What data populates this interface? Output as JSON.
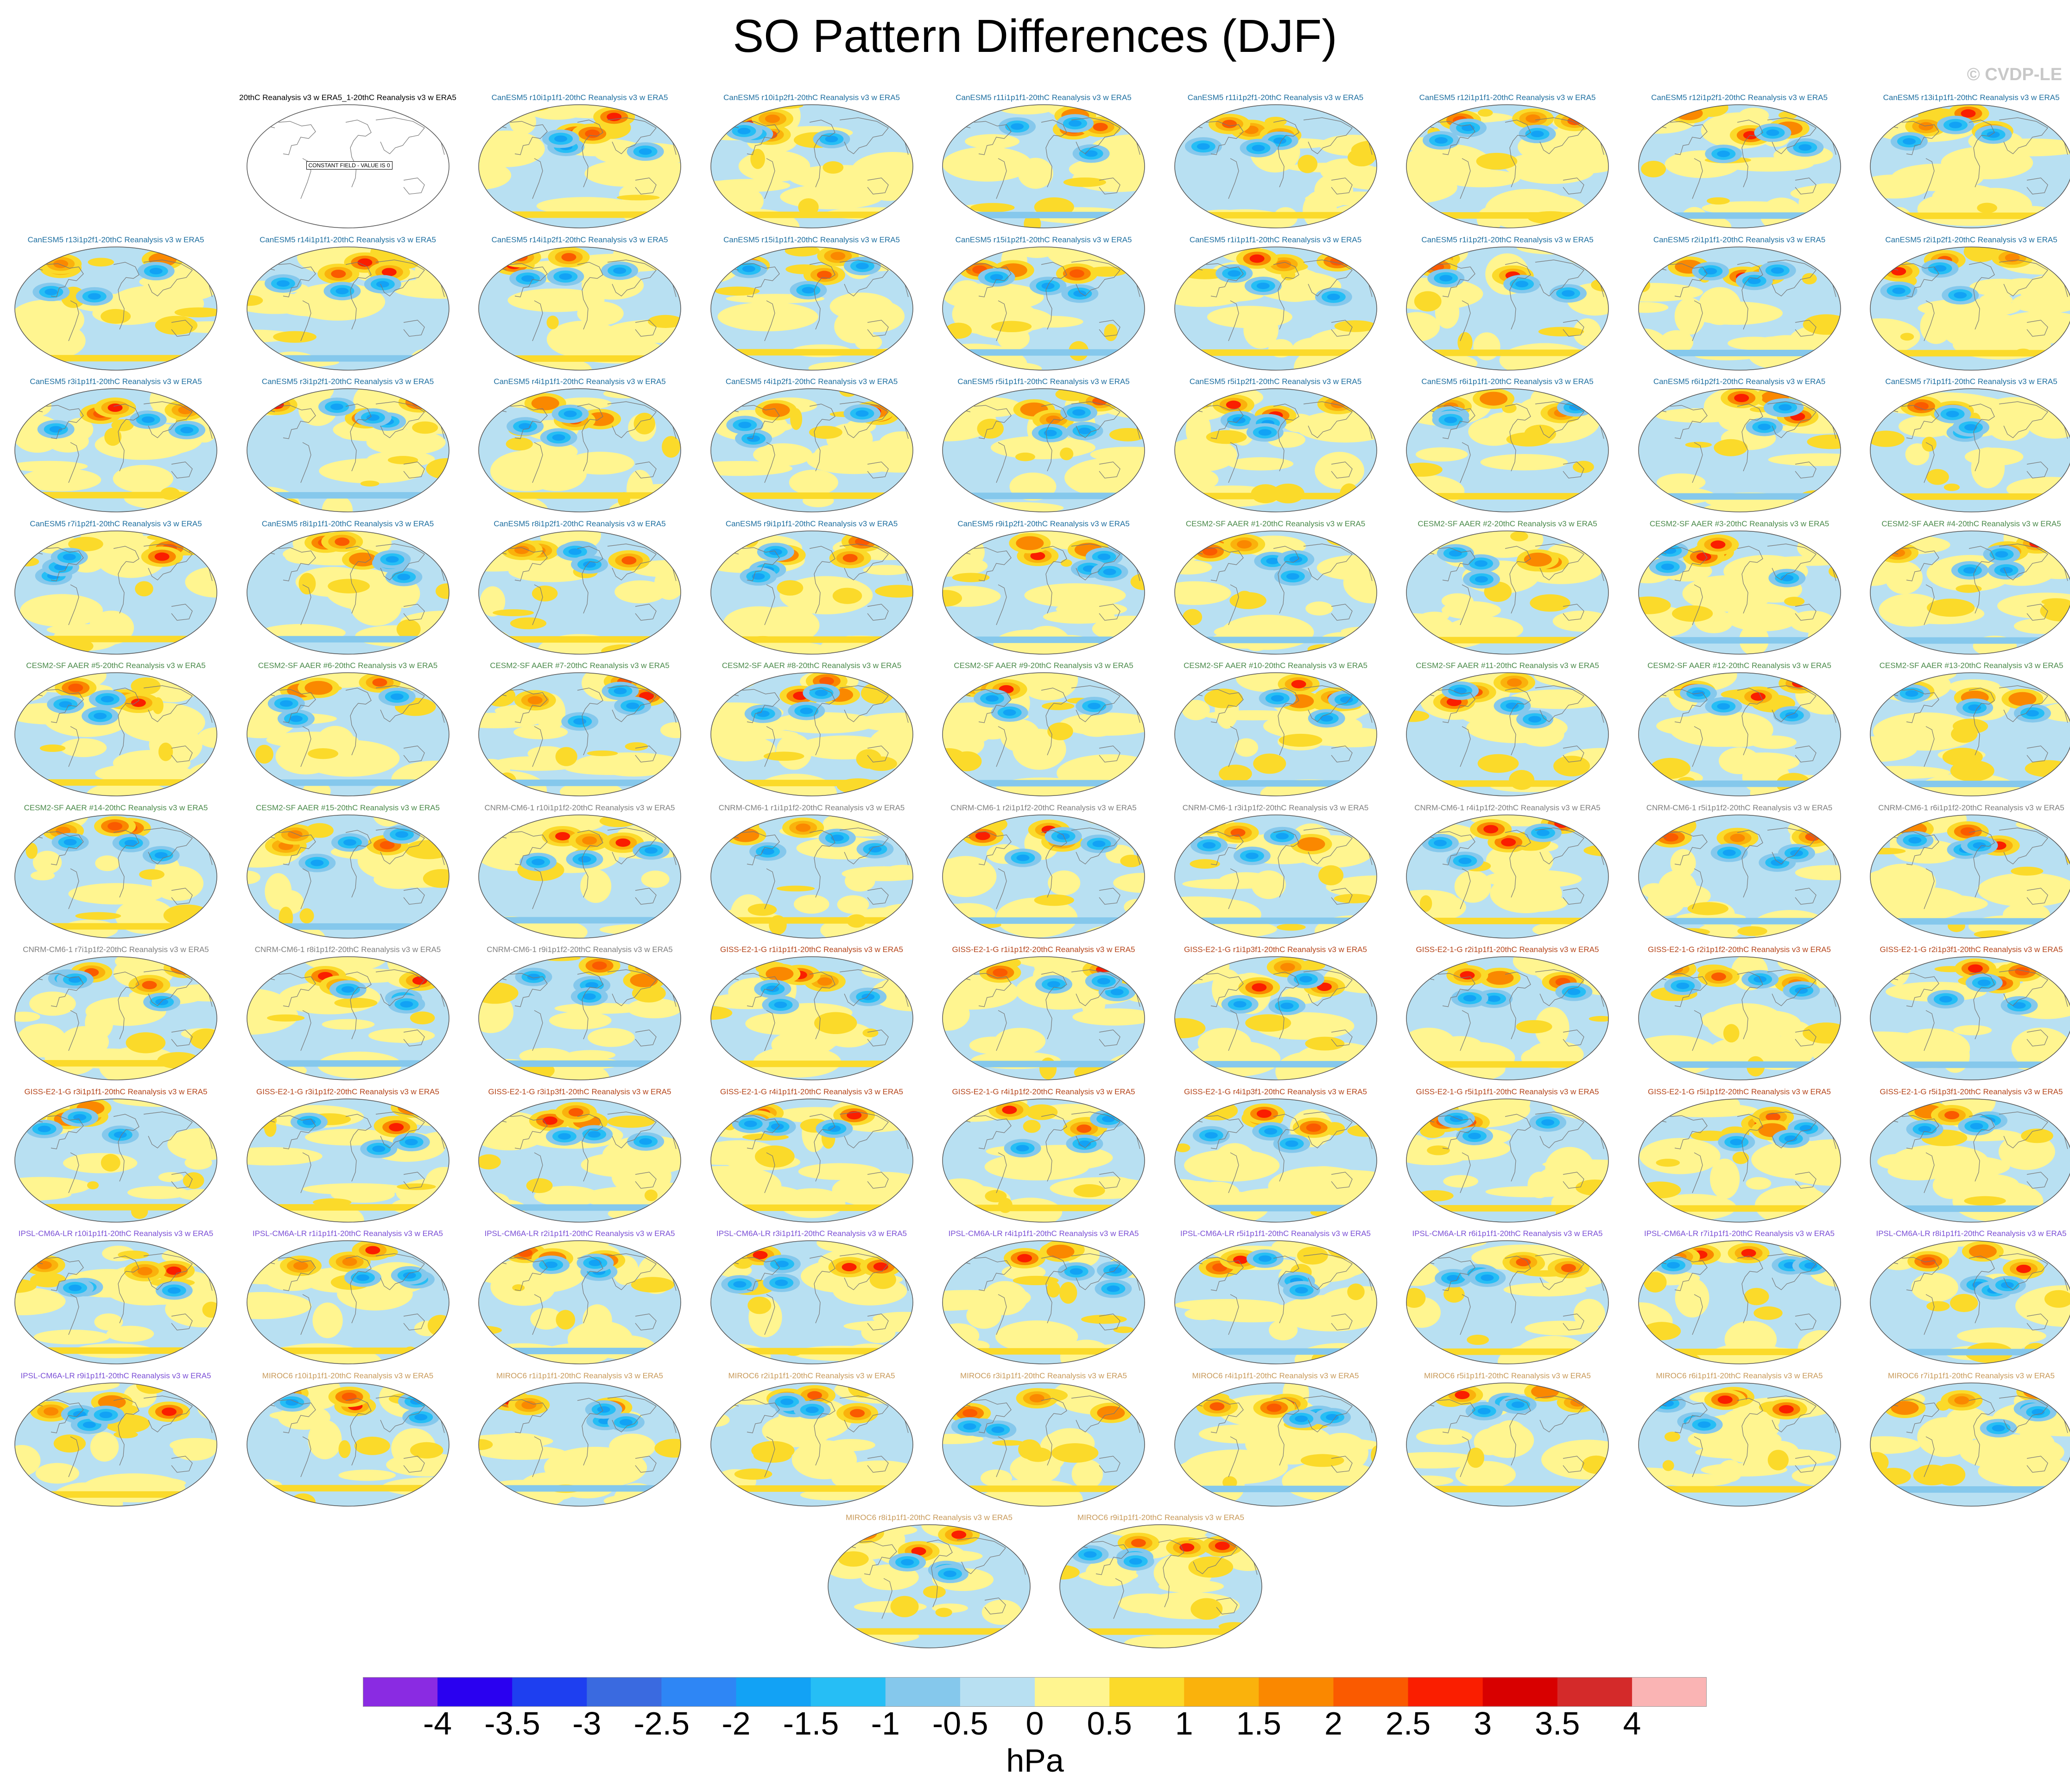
{
  "title": "SO Pattern Differences (DJF)",
  "watermark": "© CVDP-LE",
  "units": "hPa",
  "map_type": "filled contour world maps (Robinson-like projection) of sea level pressure pattern differences",
  "ensemble_colors": {
    "CanESM5": "#1e6fa0",
    "CESM2-SF AAER": "#4a8a4a",
    "CNRM-CM6-1": "#7f7f7f",
    "GISS-E2-1-G": "#b5451b",
    "IPSL-CM6A-LR": "#7b4fd6",
    "MIROC6": "#c89a5a",
    "reference": "#000000"
  },
  "colorbar": {
    "colors": [
      "#8a2be2",
      "#2a00f0",
      "#1e3ff0",
      "#3a6ae0",
      "#2e86f5",
      "#12a2f5",
      "#26bef5",
      "#85c8ec",
      "#b8e0f2",
      "#fff590",
      "#fbda2a",
      "#fab20c",
      "#fa8800",
      "#fa5a00",
      "#fa1e00",
      "#d80000",
      "#d42a2a",
      "#fab4b4"
    ],
    "ticks": [
      "-4",
      "-3.5",
      "-3",
      "-2.5",
      "-2",
      "-1.5",
      "-1",
      "-0.5",
      "0",
      "0.5",
      "1",
      "1.5",
      "2",
      "2.5",
      "3",
      "3.5",
      "4"
    ]
  },
  "panels": [
    {
      "label": "20thC Reanalysis v3 w ERA5_1-20thC Reanalysis v3 w ERA5",
      "group": "reference",
      "note": "CONSTANT FIELD - VALUE IS 0"
    },
    {
      "label": "CanESM5 r10i1p1f1-20thC Reanalysis v3 w ERA5",
      "group": "CanESM5"
    },
    {
      "label": "CanESM5 r10i1p2f1-20thC Reanalysis v3 w ERA5",
      "group": "CanESM5"
    },
    {
      "label": "CanESM5 r11i1p1f1-20thC Reanalysis v3 w ERA5",
      "group": "CanESM5"
    },
    {
      "label": "CanESM5 r11i1p2f1-20thC Reanalysis v3 w ERA5",
      "group": "CanESM5"
    },
    {
      "label": "CanESM5 r12i1p1f1-20thC Reanalysis v3 w ERA5",
      "group": "CanESM5"
    },
    {
      "label": "CanESM5 r12i1p2f1-20thC Reanalysis v3 w ERA5",
      "group": "CanESM5"
    },
    {
      "label": "CanESM5 r13i1p1f1-20thC Reanalysis v3 w ERA5",
      "group": "CanESM5"
    },
    {
      "label": "CanESM5 r13i1p2f1-20thC Reanalysis v3 w ERA5",
      "group": "CanESM5"
    },
    {
      "label": "CanESM5 r14i1p1f1-20thC Reanalysis v3 w ERA5",
      "group": "CanESM5"
    },
    {
      "label": "CanESM5 r14i1p2f1-20thC Reanalysis v3 w ERA5",
      "group": "CanESM5"
    },
    {
      "label": "CanESM5 r15i1p1f1-20thC Reanalysis v3 w ERA5",
      "group": "CanESM5"
    },
    {
      "label": "CanESM5 r15i1p2f1-20thC Reanalysis v3 w ERA5",
      "group": "CanESM5"
    },
    {
      "label": "CanESM5 r1i1p1f1-20thC Reanalysis v3 w ERA5",
      "group": "CanESM5"
    },
    {
      "label": "CanESM5 r1i1p2f1-20thC Reanalysis v3 w ERA5",
      "group": "CanESM5"
    },
    {
      "label": "CanESM5 r2i1p1f1-20thC Reanalysis v3 w ERA5",
      "group": "CanESM5"
    },
    {
      "label": "CanESM5 r2i1p2f1-20thC Reanalysis v3 w ERA5",
      "group": "CanESM5"
    },
    {
      "label": "CanESM5 r3i1p1f1-20thC Reanalysis v3 w ERA5",
      "group": "CanESM5"
    },
    {
      "label": "CanESM5 r3i1p2f1-20thC Reanalysis v3 w ERA5",
      "group": "CanESM5"
    },
    {
      "label": "CanESM5 r4i1p1f1-20thC Reanalysis v3 w ERA5",
      "group": "CanESM5"
    },
    {
      "label": "CanESM5 r4i1p2f1-20thC Reanalysis v3 w ERA5",
      "group": "CanESM5"
    },
    {
      "label": "CanESM5 r5i1p1f1-20thC Reanalysis v3 w ERA5",
      "group": "CanESM5"
    },
    {
      "label": "CanESM5 r5i1p2f1-20thC Reanalysis v3 w ERA5",
      "group": "CanESM5"
    },
    {
      "label": "CanESM5 r6i1p1f1-20thC Reanalysis v3 w ERA5",
      "group": "CanESM5"
    },
    {
      "label": "CanESM5 r6i1p2f1-20thC Reanalysis v3 w ERA5",
      "group": "CanESM5"
    },
    {
      "label": "CanESM5 r7i1p1f1-20thC Reanalysis v3 w ERA5",
      "group": "CanESM5"
    },
    {
      "label": "CanESM5 r7i1p2f1-20thC Reanalysis v3 w ERA5",
      "group": "CanESM5"
    },
    {
      "label": "CanESM5 r8i1p1f1-20thC Reanalysis v3 w ERA5",
      "group": "CanESM5"
    },
    {
      "label": "CanESM5 r8i1p2f1-20thC Reanalysis v3 w ERA5",
      "group": "CanESM5"
    },
    {
      "label": "CanESM5 r9i1p1f1-20thC Reanalysis v3 w ERA5",
      "group": "CanESM5"
    },
    {
      "label": "CanESM5 r9i1p2f1-20thC Reanalysis v3 w ERA5",
      "group": "CanESM5"
    },
    {
      "label": "CESM2-SF AAER #1-20thC Reanalysis v3 w ERA5",
      "group": "CESM2-SF AAER"
    },
    {
      "label": "CESM2-SF AAER #2-20thC Reanalysis v3 w ERA5",
      "group": "CESM2-SF AAER"
    },
    {
      "label": "CESM2-SF AAER #3-20thC Reanalysis v3 w ERA5",
      "group": "CESM2-SF AAER"
    },
    {
      "label": "CESM2-SF AAER #4-20thC Reanalysis v3 w ERA5",
      "group": "CESM2-SF AAER"
    },
    {
      "label": "CESM2-SF AAER #5-20thC Reanalysis v3 w ERA5",
      "group": "CESM2-SF AAER"
    },
    {
      "label": "CESM2-SF AAER #6-20thC Reanalysis v3 w ERA5",
      "group": "CESM2-SF AAER"
    },
    {
      "label": "CESM2-SF AAER #7-20thC Reanalysis v3 w ERA5",
      "group": "CESM2-SF AAER"
    },
    {
      "label": "CESM2-SF AAER #8-20thC Reanalysis v3 w ERA5",
      "group": "CESM2-SF AAER"
    },
    {
      "label": "CESM2-SF AAER #9-20thC Reanalysis v3 w ERA5",
      "group": "CESM2-SF AAER"
    },
    {
      "label": "CESM2-SF AAER #10-20thC Reanalysis v3 w ERA5",
      "group": "CESM2-SF AAER"
    },
    {
      "label": "CESM2-SF AAER #11-20thC Reanalysis v3 w ERA5",
      "group": "CESM2-SF AAER"
    },
    {
      "label": "CESM2-SF AAER #12-20thC Reanalysis v3 w ERA5",
      "group": "CESM2-SF AAER"
    },
    {
      "label": "CESM2-SF AAER #13-20thC Reanalysis v3 w ERA5",
      "group": "CESM2-SF AAER"
    },
    {
      "label": "CESM2-SF AAER #14-20thC Reanalysis v3 w ERA5",
      "group": "CESM2-SF AAER"
    },
    {
      "label": "CESM2-SF AAER #15-20thC Reanalysis v3 w ERA5",
      "group": "CESM2-SF AAER"
    },
    {
      "label": "CNRM-CM6-1 r10i1p1f2-20thC Reanalysis v3 w ERA5",
      "group": "CNRM-CM6-1"
    },
    {
      "label": "CNRM-CM6-1 r1i1p1f2-20thC Reanalysis v3 w ERA5",
      "group": "CNRM-CM6-1"
    },
    {
      "label": "CNRM-CM6-1 r2i1p1f2-20thC Reanalysis v3 w ERA5",
      "group": "CNRM-CM6-1"
    },
    {
      "label": "CNRM-CM6-1 r3i1p1f2-20thC Reanalysis v3 w ERA5",
      "group": "CNRM-CM6-1"
    },
    {
      "label": "CNRM-CM6-1 r4i1p1f2-20thC Reanalysis v3 w ERA5",
      "group": "CNRM-CM6-1"
    },
    {
      "label": "CNRM-CM6-1 r5i1p1f2-20thC Reanalysis v3 w ERA5",
      "group": "CNRM-CM6-1"
    },
    {
      "label": "CNRM-CM6-1 r6i1p1f2-20thC Reanalysis v3 w ERA5",
      "group": "CNRM-CM6-1"
    },
    {
      "label": "CNRM-CM6-1 r7i1p1f2-20thC Reanalysis v3 w ERA5",
      "group": "CNRM-CM6-1"
    },
    {
      "label": "CNRM-CM6-1 r8i1p1f2-20thC Reanalysis v3 w ERA5",
      "group": "CNRM-CM6-1"
    },
    {
      "label": "CNRM-CM6-1 r9i1p1f2-20thC Reanalysis v3 w ERA5",
      "group": "CNRM-CM6-1"
    },
    {
      "label": "GISS-E2-1-G r1i1p1f1-20thC Reanalysis v3 w ERA5",
      "group": "GISS-E2-1-G"
    },
    {
      "label": "GISS-E2-1-G r1i1p1f2-20thC Reanalysis v3 w ERA5",
      "group": "GISS-E2-1-G"
    },
    {
      "label": "GISS-E2-1-G r1i1p3f1-20thC Reanalysis v3 w ERA5",
      "group": "GISS-E2-1-G"
    },
    {
      "label": "GISS-E2-1-G r2i1p1f1-20thC Reanalysis v3 w ERA5",
      "group": "GISS-E2-1-G"
    },
    {
      "label": "GISS-E2-1-G r2i1p1f2-20thC Reanalysis v3 w ERA5",
      "group": "GISS-E2-1-G"
    },
    {
      "label": "GISS-E2-1-G r2i1p3f1-20thC Reanalysis v3 w ERA5",
      "group": "GISS-E2-1-G"
    },
    {
      "label": "GISS-E2-1-G r3i1p1f1-20thC Reanalysis v3 w ERA5",
      "group": "GISS-E2-1-G"
    },
    {
      "label": "GISS-E2-1-G r3i1p1f2-20thC Reanalysis v3 w ERA5",
      "group": "GISS-E2-1-G"
    },
    {
      "label": "GISS-E2-1-G r3i1p3f1-20thC Reanalysis v3 w ERA5",
      "group": "GISS-E2-1-G"
    },
    {
      "label": "GISS-E2-1-G r4i1p1f1-20thC Reanalysis v3 w ERA5",
      "group": "GISS-E2-1-G"
    },
    {
      "label": "GISS-E2-1-G r4i1p1f2-20thC Reanalysis v3 w ERA5",
      "group": "GISS-E2-1-G"
    },
    {
      "label": "GISS-E2-1-G r4i1p3f1-20thC Reanalysis v3 w ERA5",
      "group": "GISS-E2-1-G"
    },
    {
      "label": "GISS-E2-1-G r5i1p1f1-20thC Reanalysis v3 w ERA5",
      "group": "GISS-E2-1-G"
    },
    {
      "label": "GISS-E2-1-G r5i1p1f2-20thC Reanalysis v3 w ERA5",
      "group": "GISS-E2-1-G"
    },
    {
      "label": "GISS-E2-1-G r5i1p3f1-20thC Reanalysis v3 w ERA5",
      "group": "GISS-E2-1-G"
    },
    {
      "label": "IPSL-CM6A-LR r10i1p1f1-20thC Reanalysis v3 w ERA5",
      "group": "IPSL-CM6A-LR"
    },
    {
      "label": "IPSL-CM6A-LR r1i1p1f1-20thC Reanalysis v3 w ERA5",
      "group": "IPSL-CM6A-LR"
    },
    {
      "label": "IPSL-CM6A-LR r2i1p1f1-20thC Reanalysis v3 w ERA5",
      "group": "IPSL-CM6A-LR"
    },
    {
      "label": "IPSL-CM6A-LR r3i1p1f1-20thC Reanalysis v3 w ERA5",
      "group": "IPSL-CM6A-LR"
    },
    {
      "label": "IPSL-CM6A-LR r4i1p1f1-20thC Reanalysis v3 w ERA5",
      "group": "IPSL-CM6A-LR"
    },
    {
      "label": "IPSL-CM6A-LR r5i1p1f1-20thC Reanalysis v3 w ERA5",
      "group": "IPSL-CM6A-LR"
    },
    {
      "label": "IPSL-CM6A-LR r6i1p1f1-20thC Reanalysis v3 w ERA5",
      "group": "IPSL-CM6A-LR"
    },
    {
      "label": "IPSL-CM6A-LR r7i1p1f1-20thC Reanalysis v3 w ERA5",
      "group": "IPSL-CM6A-LR"
    },
    {
      "label": "IPSL-CM6A-LR r8i1p1f1-20thC Reanalysis v3 w ERA5",
      "group": "IPSL-CM6A-LR"
    },
    {
      "label": "IPSL-CM6A-LR r9i1p1f1-20thC Reanalysis v3 w ERA5",
      "group": "IPSL-CM6A-LR"
    },
    {
      "label": "MIROC6 r10i1p1f1-20thC Reanalysis v3 w ERA5",
      "group": "MIROC6"
    },
    {
      "label": "MIROC6 r1i1p1f1-20thC Reanalysis v3 w ERA5",
      "group": "MIROC6"
    },
    {
      "label": "MIROC6 r2i1p1f1-20thC Reanalysis v3 w ERA5",
      "group": "MIROC6"
    },
    {
      "label": "MIROC6 r3i1p1f1-20thC Reanalysis v3 w ERA5",
      "group": "MIROC6"
    },
    {
      "label": "MIROC6 r4i1p1f1-20thC Reanalysis v3 w ERA5",
      "group": "MIROC6"
    },
    {
      "label": "MIROC6 r5i1p1f1-20thC Reanalysis v3 w ERA5",
      "group": "MIROC6"
    },
    {
      "label": "MIROC6 r6i1p1f1-20thC Reanalysis v3 w ERA5",
      "group": "MIROC6"
    },
    {
      "label": "MIROC6 r7i1p1f1-20thC Reanalysis v3 w ERA5",
      "group": "MIROC6"
    },
    {
      "label": "MIROC6 r8i1p1f1-20thC Reanalysis v3 w ERA5",
      "group": "MIROC6"
    },
    {
      "label": "MIROC6 r9i1p1f1-20thC Reanalysis v3 w ERA5",
      "group": "MIROC6"
    }
  ]
}
